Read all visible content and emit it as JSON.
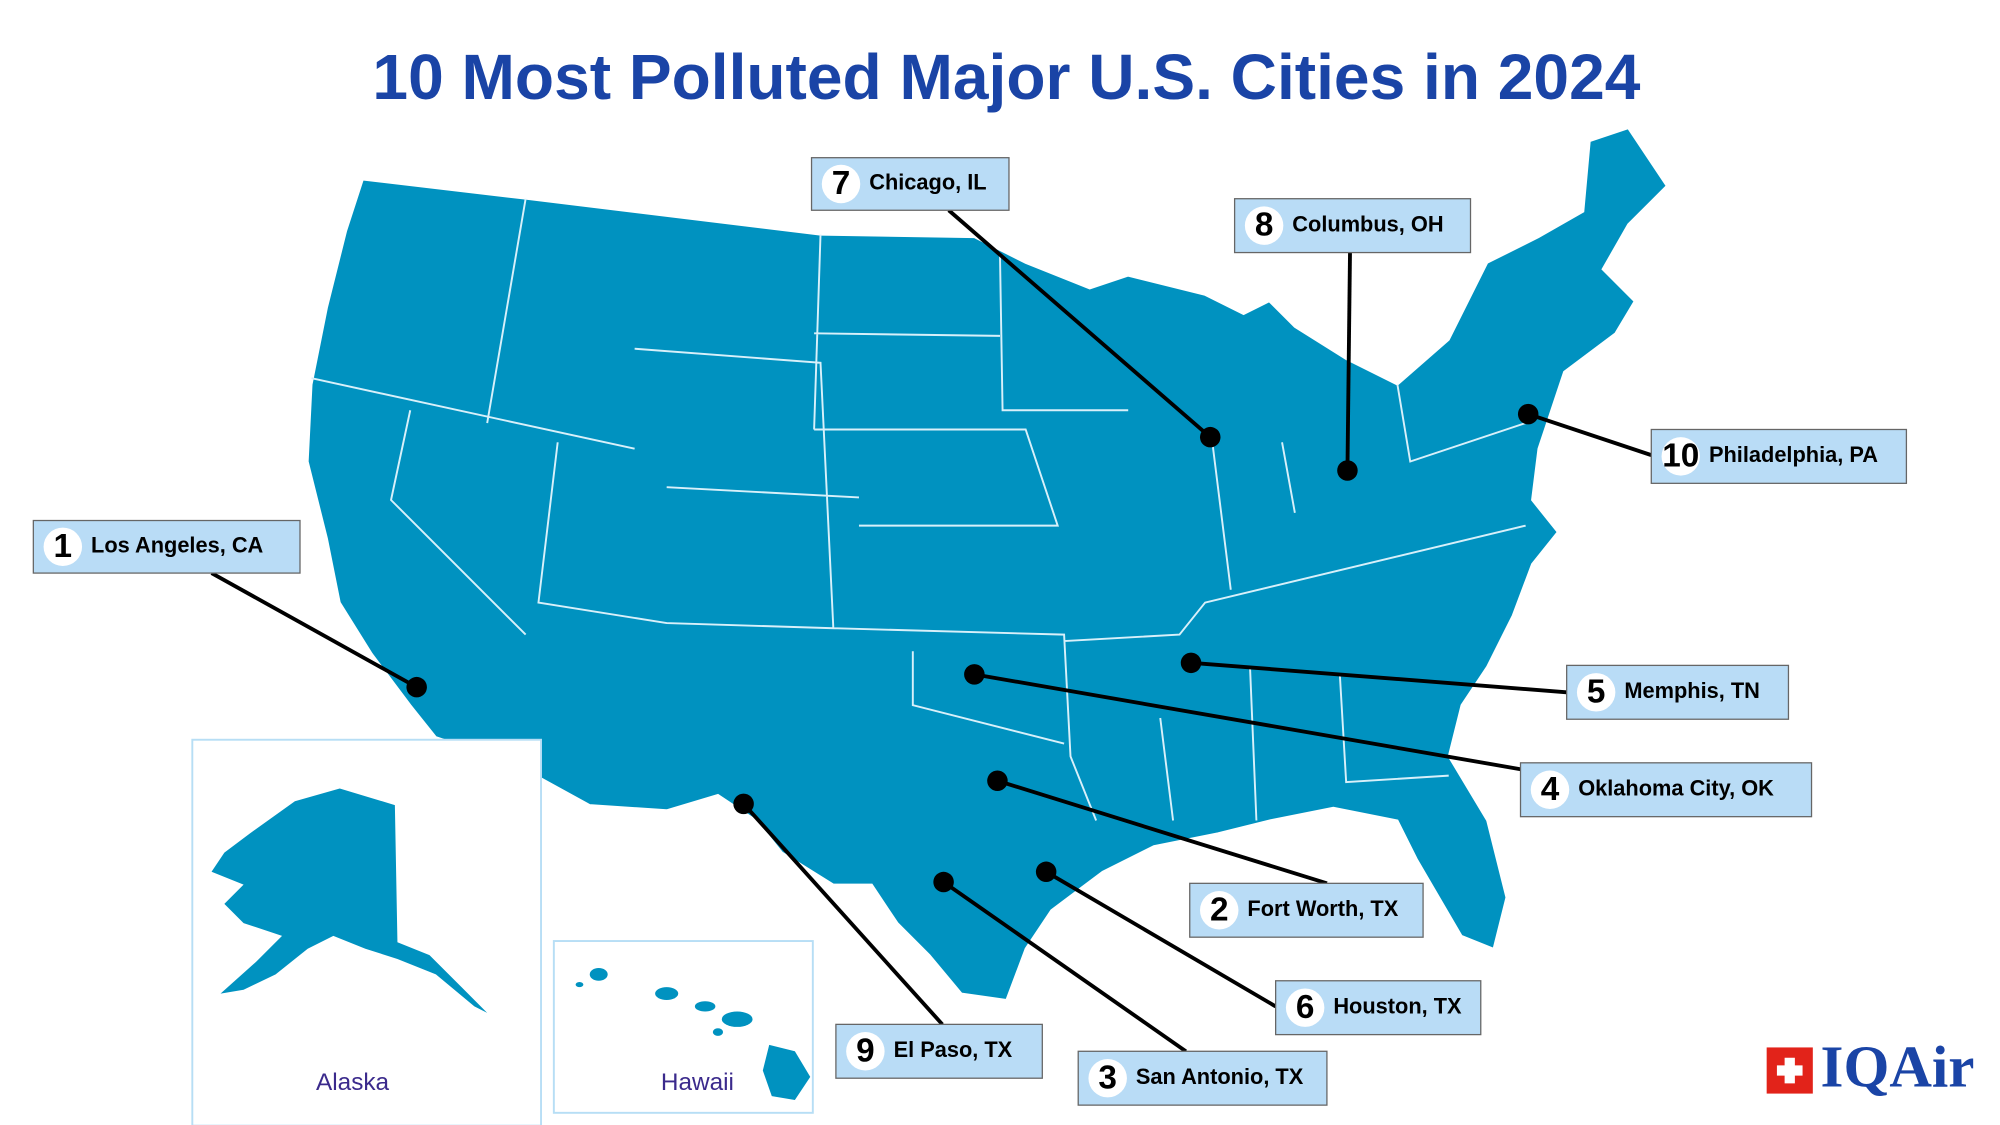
{
  "title": "10 Most Polluted Major U.S. Cities in 2024",
  "cities": [
    {
      "rank": 1,
      "name": "Los Angeles, CA"
    },
    {
      "rank": 2,
      "name": "Fort Worth, TX"
    },
    {
      "rank": 3,
      "name": "San Antonio, TX"
    },
    {
      "rank": 4,
      "name": "Oklahoma City, OK"
    },
    {
      "rank": 5,
      "name": "Memphis, TN"
    },
    {
      "rank": 6,
      "name": "Houston, TX"
    },
    {
      "rank": 7,
      "name": "Chicago, IL"
    },
    {
      "rank": 8,
      "name": "Columbus, OH"
    },
    {
      "rank": 9,
      "name": "El Paso, TX"
    },
    {
      "rank": 10,
      "name": "Philadelphia, PA"
    }
  ],
  "insets": {
    "alaska": "Alaska",
    "hawaii": "Hawaii"
  },
  "logo": "IQAir"
}
